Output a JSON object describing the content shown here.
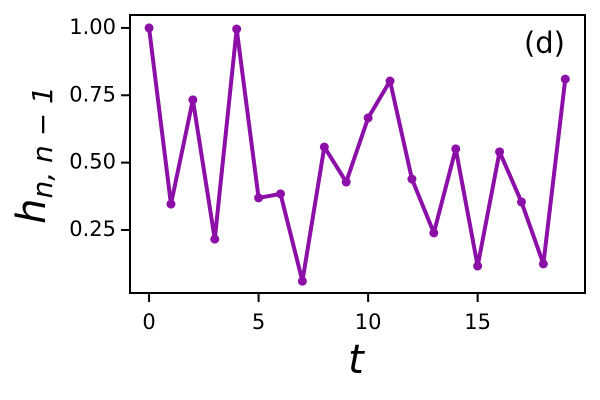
{
  "chart_data": {
    "type": "line",
    "xlabel": "t",
    "ylabel": {
      "base": "h",
      "sub": "n, n − 1"
    },
    "annotation": "(d)",
    "x": [
      0,
      1,
      2,
      3,
      4,
      5,
      6,
      7,
      8,
      9,
      10,
      11,
      12,
      13,
      14,
      15,
      16,
      17,
      18,
      19
    ],
    "series": [
      {
        "color": "#8c10a8",
        "values": [
          1.0,
          0.346,
          0.733,
          0.216,
          0.996,
          0.369,
          0.384,
          0.06,
          0.558,
          0.428,
          0.666,
          0.803,
          0.439,
          0.239,
          0.551,
          0.116,
          0.54,
          0.354,
          0.124,
          0.81
        ]
      }
    ],
    "xlim": [
      -0.87,
      19.9
    ],
    "ylim": [
      0.016,
      1.048
    ],
    "xticks": [
      0,
      5,
      10,
      15
    ],
    "yticks": [
      {
        "value": 0.25,
        "label": "0.25"
      },
      {
        "value": 0.5,
        "label": "0.50"
      },
      {
        "value": 0.75,
        "label": "0.75"
      },
      {
        "value": 1.0,
        "label": "1.00"
      }
    ]
  }
}
